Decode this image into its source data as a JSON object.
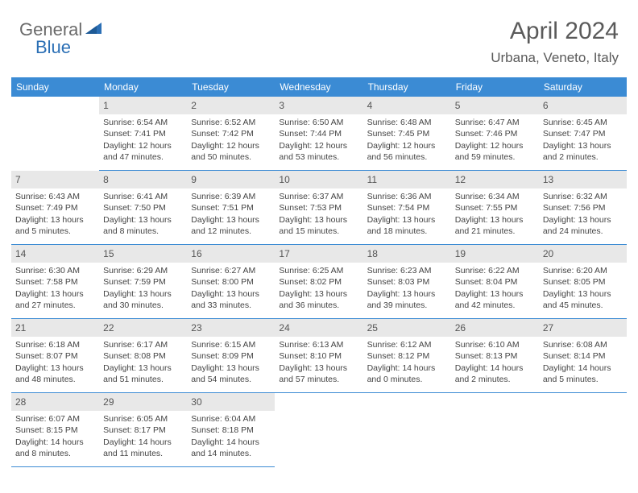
{
  "logo": {
    "text1": "General",
    "text2": "Blue"
  },
  "title": "April 2024",
  "location": "Urbana, Veneto, Italy",
  "colors": {
    "header_bg": "#3b8bd4",
    "header_text": "#ffffff",
    "daynum_bg": "#e8e8e8",
    "cell_border": "#3b8bd4",
    "body_text": "#444444",
    "logo_gray": "#6a6a6a",
    "logo_blue": "#2b6fb5"
  },
  "weekdays": [
    "Sunday",
    "Monday",
    "Tuesday",
    "Wednesday",
    "Thursday",
    "Friday",
    "Saturday"
  ],
  "grid": {
    "columns": 7,
    "rows": 5,
    "start_weekday_index": 1,
    "days_in_month": 30
  },
  "days": [
    {
      "n": 1,
      "sunrise": "6:54 AM",
      "sunset": "7:41 PM",
      "daylight": "12 hours and 47 minutes."
    },
    {
      "n": 2,
      "sunrise": "6:52 AM",
      "sunset": "7:42 PM",
      "daylight": "12 hours and 50 minutes."
    },
    {
      "n": 3,
      "sunrise": "6:50 AM",
      "sunset": "7:44 PM",
      "daylight": "12 hours and 53 minutes."
    },
    {
      "n": 4,
      "sunrise": "6:48 AM",
      "sunset": "7:45 PM",
      "daylight": "12 hours and 56 minutes."
    },
    {
      "n": 5,
      "sunrise": "6:47 AM",
      "sunset": "7:46 PM",
      "daylight": "12 hours and 59 minutes."
    },
    {
      "n": 6,
      "sunrise": "6:45 AM",
      "sunset": "7:47 PM",
      "daylight": "13 hours and 2 minutes."
    },
    {
      "n": 7,
      "sunrise": "6:43 AM",
      "sunset": "7:49 PM",
      "daylight": "13 hours and 5 minutes."
    },
    {
      "n": 8,
      "sunrise": "6:41 AM",
      "sunset": "7:50 PM",
      "daylight": "13 hours and 8 minutes."
    },
    {
      "n": 9,
      "sunrise": "6:39 AM",
      "sunset": "7:51 PM",
      "daylight": "13 hours and 12 minutes."
    },
    {
      "n": 10,
      "sunrise": "6:37 AM",
      "sunset": "7:53 PM",
      "daylight": "13 hours and 15 minutes."
    },
    {
      "n": 11,
      "sunrise": "6:36 AM",
      "sunset": "7:54 PM",
      "daylight": "13 hours and 18 minutes."
    },
    {
      "n": 12,
      "sunrise": "6:34 AM",
      "sunset": "7:55 PM",
      "daylight": "13 hours and 21 minutes."
    },
    {
      "n": 13,
      "sunrise": "6:32 AM",
      "sunset": "7:56 PM",
      "daylight": "13 hours and 24 minutes."
    },
    {
      "n": 14,
      "sunrise": "6:30 AM",
      "sunset": "7:58 PM",
      "daylight": "13 hours and 27 minutes."
    },
    {
      "n": 15,
      "sunrise": "6:29 AM",
      "sunset": "7:59 PM",
      "daylight": "13 hours and 30 minutes."
    },
    {
      "n": 16,
      "sunrise": "6:27 AM",
      "sunset": "8:00 PM",
      "daylight": "13 hours and 33 minutes."
    },
    {
      "n": 17,
      "sunrise": "6:25 AM",
      "sunset": "8:02 PM",
      "daylight": "13 hours and 36 minutes."
    },
    {
      "n": 18,
      "sunrise": "6:23 AM",
      "sunset": "8:03 PM",
      "daylight": "13 hours and 39 minutes."
    },
    {
      "n": 19,
      "sunrise": "6:22 AM",
      "sunset": "8:04 PM",
      "daylight": "13 hours and 42 minutes."
    },
    {
      "n": 20,
      "sunrise": "6:20 AM",
      "sunset": "8:05 PM",
      "daylight": "13 hours and 45 minutes."
    },
    {
      "n": 21,
      "sunrise": "6:18 AM",
      "sunset": "8:07 PM",
      "daylight": "13 hours and 48 minutes."
    },
    {
      "n": 22,
      "sunrise": "6:17 AM",
      "sunset": "8:08 PM",
      "daylight": "13 hours and 51 minutes."
    },
    {
      "n": 23,
      "sunrise": "6:15 AM",
      "sunset": "8:09 PM",
      "daylight": "13 hours and 54 minutes."
    },
    {
      "n": 24,
      "sunrise": "6:13 AM",
      "sunset": "8:10 PM",
      "daylight": "13 hours and 57 minutes."
    },
    {
      "n": 25,
      "sunrise": "6:12 AM",
      "sunset": "8:12 PM",
      "daylight": "14 hours and 0 minutes."
    },
    {
      "n": 26,
      "sunrise": "6:10 AM",
      "sunset": "8:13 PM",
      "daylight": "14 hours and 2 minutes."
    },
    {
      "n": 27,
      "sunrise": "6:08 AM",
      "sunset": "8:14 PM",
      "daylight": "14 hours and 5 minutes."
    },
    {
      "n": 28,
      "sunrise": "6:07 AM",
      "sunset": "8:15 PM",
      "daylight": "14 hours and 8 minutes."
    },
    {
      "n": 29,
      "sunrise": "6:05 AM",
      "sunset": "8:17 PM",
      "daylight": "14 hours and 11 minutes."
    },
    {
      "n": 30,
      "sunrise": "6:04 AM",
      "sunset": "8:18 PM",
      "daylight": "14 hours and 14 minutes."
    }
  ],
  "labels": {
    "sunrise": "Sunrise:",
    "sunset": "Sunset:",
    "daylight": "Daylight:"
  }
}
